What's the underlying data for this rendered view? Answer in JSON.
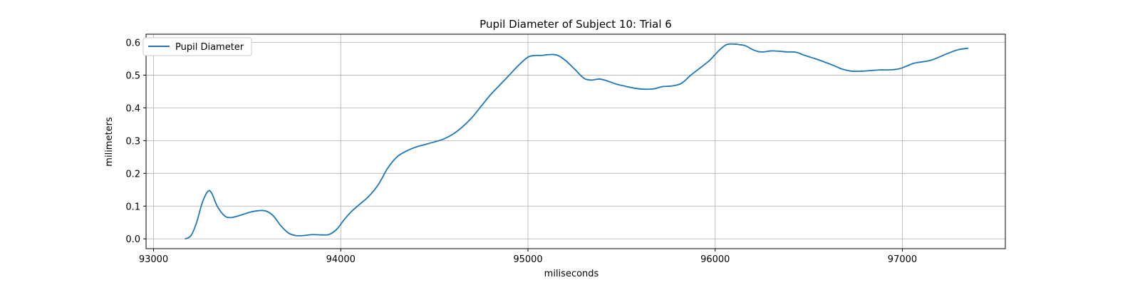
{
  "chart_data": {
    "type": "line",
    "title": "Pupil Diameter of Subject 10: Trial 6",
    "xlabel": "miliseconds",
    "ylabel": "milimeters",
    "xlim": [
      92960,
      97550
    ],
    "ylim": [
      -0.03,
      0.625
    ],
    "xticks": [
      93000,
      94000,
      95000,
      96000,
      97000
    ],
    "yticks": [
      0.0,
      0.1,
      0.2,
      0.3,
      0.4,
      0.5,
      0.6
    ],
    "xtick_labels": [
      "93000",
      "94000",
      "95000",
      "96000",
      "97000"
    ],
    "ytick_labels": [
      "0.0",
      "0.1",
      "0.2",
      "0.3",
      "0.4",
      "0.5",
      "0.6"
    ],
    "grid": true,
    "legend_position": "upper-left",
    "line_color": "#1f77b4",
    "series": [
      {
        "name": "Pupil Diameter",
        "x": [
          93170,
          93200,
          93230,
          93260,
          93290,
          93310,
          93340,
          93380,
          93410,
          93440,
          93480,
          93520,
          93560,
          93600,
          93640,
          93680,
          93720,
          93760,
          93800,
          93850,
          93900,
          93940,
          93980,
          94020,
          94060,
          94100,
          94150,
          94200,
          94250,
          94300,
          94350,
          94400,
          94450,
          94500,
          94550,
          94600,
          94650,
          94700,
          94750,
          94800,
          94850,
          94900,
          94950,
          95000,
          95040,
          95070,
          95100,
          95130,
          95160,
          95200,
          95250,
          95300,
          95340,
          95380,
          95420,
          95470,
          95520,
          95570,
          95620,
          95670,
          95720,
          95770,
          95820,
          95870,
          95920,
          95970,
          96020,
          96060,
          96100,
          96130,
          96160,
          96200,
          96230,
          96260,
          96300,
          96340,
          96380,
          96430,
          96480,
          96530,
          96580,
          96630,
          96680,
          96730,
          96780,
          96830,
          96880,
          96930,
          96980,
          97020,
          97060,
          97100,
          97150,
          97200,
          97250,
          97300,
          97350
        ],
        "y": [
          0.0,
          0.01,
          0.05,
          0.11,
          0.145,
          0.14,
          0.1,
          0.07,
          0.065,
          0.068,
          0.075,
          0.082,
          0.086,
          0.085,
          0.07,
          0.04,
          0.018,
          0.01,
          0.01,
          0.013,
          0.012,
          0.014,
          0.03,
          0.06,
          0.085,
          0.105,
          0.13,
          0.165,
          0.215,
          0.25,
          0.268,
          0.28,
          0.288,
          0.296,
          0.305,
          0.32,
          0.342,
          0.37,
          0.405,
          0.44,
          0.47,
          0.5,
          0.53,
          0.555,
          0.56,
          0.56,
          0.562,
          0.563,
          0.56,
          0.545,
          0.518,
          0.49,
          0.485,
          0.488,
          0.483,
          0.473,
          0.466,
          0.46,
          0.457,
          0.458,
          0.465,
          0.467,
          0.475,
          0.5,
          0.522,
          0.545,
          0.575,
          0.593,
          0.595,
          0.593,
          0.59,
          0.578,
          0.572,
          0.571,
          0.574,
          0.573,
          0.571,
          0.57,
          0.56,
          0.551,
          0.541,
          0.53,
          0.518,
          0.512,
          0.512,
          0.514,
          0.516,
          0.516,
          0.519,
          0.527,
          0.536,
          0.54,
          0.545,
          0.556,
          0.568,
          0.578,
          0.582
        ]
      }
    ]
  }
}
